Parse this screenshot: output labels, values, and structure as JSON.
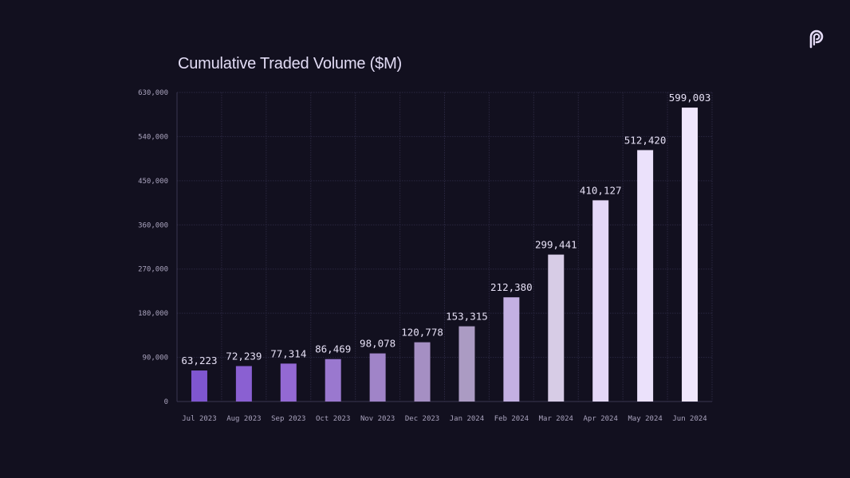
{
  "chart_data": {
    "type": "bar",
    "title": "Cumulative Traded Volume ($M)",
    "xlabel": "",
    "ylabel": "",
    "ylim": [
      0,
      630000
    ],
    "yticks": [
      0,
      90000,
      180000,
      270000,
      360000,
      450000,
      540000,
      630000
    ],
    "ytick_labels": [
      "0",
      "90,000",
      "180,000",
      "270,000",
      "360,000",
      "450,000",
      "540,000",
      "630,000"
    ],
    "grid": true,
    "categories": [
      "Jul 2023",
      "Aug 2023",
      "Sep 2023",
      "Oct 2023",
      "Nov 2023",
      "Dec 2023",
      "Jan 2024",
      "Feb 2024",
      "Mar 2024",
      "Apr 2024",
      "May 2024",
      "Jun 2024"
    ],
    "values": [
      63223,
      72239,
      77314,
      86469,
      98078,
      120778,
      153315,
      212380,
      299441,
      410127,
      512420,
      599003
    ],
    "data_labels": [
      "63,223",
      "72,239",
      "77,314",
      "86,469",
      "98,078",
      "120,778",
      "153,315",
      "212,380",
      "299,441",
      "410,127",
      "512,420",
      "599,003"
    ],
    "bar_colors": [
      "#7f56d0",
      "#8a60d2",
      "#9369d3",
      "#9a78cf",
      "#a084c8",
      "#a58fc3",
      "#ab9bc3",
      "#c3b0e2",
      "#d7cce6",
      "#e4d8f7",
      "#ebe1fb",
      "#efe6fc"
    ]
  },
  "brand": {
    "logo": "pyth-logo-icon",
    "accent": "#e6ddf8"
  },
  "colors": {
    "background": "#12101f",
    "grid": "#2a2740",
    "axis": "#3a3650"
  }
}
